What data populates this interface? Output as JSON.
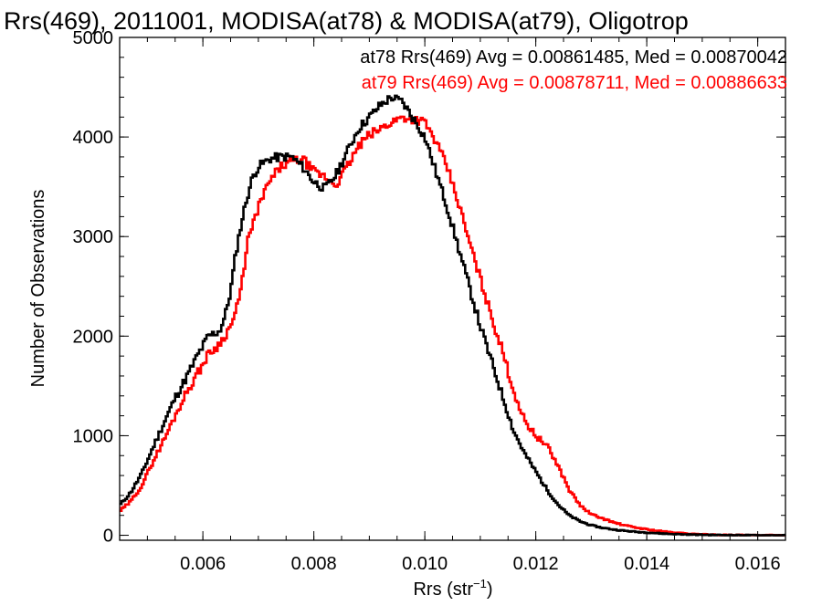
{
  "chart_data": {
    "type": "line",
    "title": "Rrs(469), 2011001, MODISA(at78) & MODISA(at79), Oligotrop",
    "xlabel": "Rrs (str",
    "xlabel_sup": "−1",
    "xlabel_close": ")",
    "ylabel": "Number of Observations",
    "xlim": [
      0.0045,
      0.0165
    ],
    "ylim": [
      -50,
      5000
    ],
    "x_ticks": [
      0.006,
      0.008,
      0.01,
      0.012,
      0.014,
      0.016
    ],
    "x_tick_labels": [
      "0.006",
      "0.008",
      "0.010",
      "0.012",
      "0.014",
      "0.016"
    ],
    "y_ticks": [
      0,
      1000,
      2000,
      3000,
      4000,
      5000
    ],
    "y_tick_labels": [
      "0",
      "1000",
      "2000",
      "3000",
      "4000",
      "5000"
    ],
    "grid": false,
    "legend_position": "top-right",
    "annotations": [
      {
        "text": "at78 Rrs(469) Avg = 0.00861485, Med = 0.00870042",
        "color": "#000000"
      },
      {
        "text": "at79 Rrs(469) Avg = 0.00878711, Med = 0.00886633",
        "color": "#ff0000"
      }
    ],
    "series": [
      {
        "color": "#000000",
        "points": [
          [
            0.0045,
            300
          ],
          [
            0.0047,
            430
          ],
          [
            0.0049,
            620
          ],
          [
            0.0051,
            880
          ],
          [
            0.0053,
            1130
          ],
          [
            0.0055,
            1380
          ],
          [
            0.0057,
            1580
          ],
          [
            0.0059,
            1800
          ],
          [
            0.0061,
            2000
          ],
          [
            0.0063,
            2050
          ],
          [
            0.0064,
            2200
          ],
          [
            0.0065,
            2450
          ],
          [
            0.0066,
            2850
          ],
          [
            0.0067,
            3150
          ],
          [
            0.0068,
            3400
          ],
          [
            0.0069,
            3600
          ],
          [
            0.007,
            3700
          ],
          [
            0.0072,
            3780
          ],
          [
            0.0074,
            3800
          ],
          [
            0.0076,
            3800
          ],
          [
            0.0078,
            3700
          ],
          [
            0.008,
            3550
          ],
          [
            0.0082,
            3480
          ],
          [
            0.0084,
            3620
          ],
          [
            0.0086,
            3850
          ],
          [
            0.0088,
            4080
          ],
          [
            0.009,
            4200
          ],
          [
            0.0092,
            4320
          ],
          [
            0.0094,
            4400
          ],
          [
            0.0096,
            4350
          ],
          [
            0.0098,
            4180
          ],
          [
            0.01,
            4000
          ],
          [
            0.0102,
            3650
          ],
          [
            0.0104,
            3300
          ],
          [
            0.0106,
            2900
          ],
          [
            0.0108,
            2500
          ],
          [
            0.011,
            2100
          ],
          [
            0.0112,
            1750
          ],
          [
            0.0114,
            1400
          ],
          [
            0.0116,
            1050
          ],
          [
            0.0118,
            820
          ],
          [
            0.012,
            640
          ],
          [
            0.0122,
            460
          ],
          [
            0.0124,
            310
          ],
          [
            0.0126,
            200
          ],
          [
            0.0128,
            140
          ],
          [
            0.013,
            100
          ],
          [
            0.0132,
            75
          ],
          [
            0.0134,
            58
          ],
          [
            0.0136,
            45
          ],
          [
            0.0138,
            35
          ],
          [
            0.014,
            28
          ],
          [
            0.0142,
            20
          ],
          [
            0.0144,
            14
          ],
          [
            0.0146,
            10
          ],
          [
            0.0148,
            7
          ],
          [
            0.015,
            5
          ],
          [
            0.0152,
            3
          ],
          [
            0.0154,
            2
          ],
          [
            0.0156,
            1
          ],
          [
            0.0158,
            1
          ],
          [
            0.016,
            0
          ],
          [
            0.0165,
            0
          ]
        ]
      },
      {
        "color": "#ff0000",
        "points": [
          [
            0.0045,
            240
          ],
          [
            0.0047,
            340
          ],
          [
            0.0049,
            500
          ],
          [
            0.0051,
            740
          ],
          [
            0.0053,
            960
          ],
          [
            0.0055,
            1200
          ],
          [
            0.0057,
            1430
          ],
          [
            0.0059,
            1620
          ],
          [
            0.0061,
            1820
          ],
          [
            0.0063,
            1920
          ],
          [
            0.0065,
            2100
          ],
          [
            0.0066,
            2250
          ],
          [
            0.0067,
            2500
          ],
          [
            0.0068,
            2950
          ],
          [
            0.0069,
            3100
          ],
          [
            0.007,
            3300
          ],
          [
            0.0072,
            3550
          ],
          [
            0.0074,
            3700
          ],
          [
            0.0076,
            3750
          ],
          [
            0.0078,
            3780
          ],
          [
            0.008,
            3650
          ],
          [
            0.0082,
            3600
          ],
          [
            0.0084,
            3520
          ],
          [
            0.0086,
            3700
          ],
          [
            0.0088,
            3900
          ],
          [
            0.009,
            4020
          ],
          [
            0.0092,
            4080
          ],
          [
            0.0094,
            4150
          ],
          [
            0.0096,
            4200
          ],
          [
            0.0098,
            4180
          ],
          [
            0.01,
            4150
          ],
          [
            0.0102,
            3950
          ],
          [
            0.0104,
            3700
          ],
          [
            0.0106,
            3350
          ],
          [
            0.0108,
            2950
          ],
          [
            0.011,
            2580
          ],
          [
            0.0112,
            2200
          ],
          [
            0.0114,
            1850
          ],
          [
            0.0116,
            1450
          ],
          [
            0.0118,
            1150
          ],
          [
            0.012,
            1000
          ],
          [
            0.0122,
            900
          ],
          [
            0.0124,
            700
          ],
          [
            0.0126,
            460
          ],
          [
            0.0128,
            300
          ],
          [
            0.013,
            210
          ],
          [
            0.0132,
            170
          ],
          [
            0.0134,
            130
          ],
          [
            0.0136,
            100
          ],
          [
            0.0138,
            78
          ],
          [
            0.014,
            60
          ],
          [
            0.0142,
            45
          ],
          [
            0.0144,
            32
          ],
          [
            0.0146,
            22
          ],
          [
            0.0148,
            15
          ],
          [
            0.015,
            10
          ],
          [
            0.0152,
            6
          ],
          [
            0.0154,
            4
          ],
          [
            0.0156,
            2
          ],
          [
            0.0158,
            1
          ],
          [
            0.016,
            0
          ],
          [
            0.0165,
            0
          ]
        ]
      }
    ]
  }
}
